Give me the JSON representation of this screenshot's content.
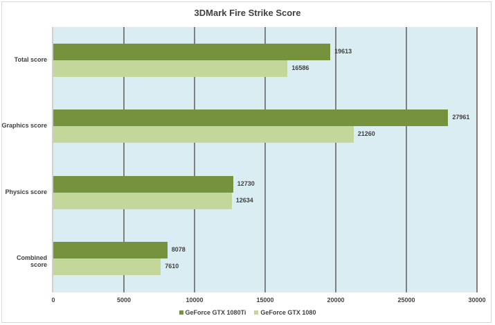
{
  "chart_data": {
    "type": "bar",
    "orientation": "horizontal",
    "title": "3DMark Fire Strike Score",
    "xlabel": "",
    "ylabel": "",
    "categories": [
      "Total score",
      "Graphics score",
      "Physics score",
      "Combined score"
    ],
    "series": [
      {
        "name": "GeForce GTX 1080Ti",
        "color": "#76923c",
        "values": [
          19613,
          27961,
          12730,
          8078
        ]
      },
      {
        "name": "GeForce GTX 1080",
        "color": "#c4d79b",
        "values": [
          16586,
          21260,
          12634,
          7610
        ]
      }
    ],
    "xlim": [
      0,
      30000
    ],
    "x_ticks": [
      "0",
      "5000",
      "10000",
      "15000",
      "20000",
      "25000",
      "30000"
    ],
    "grid": true,
    "legend_position": "bottom",
    "data_labels": true,
    "plot_background": "#daedf3"
  }
}
